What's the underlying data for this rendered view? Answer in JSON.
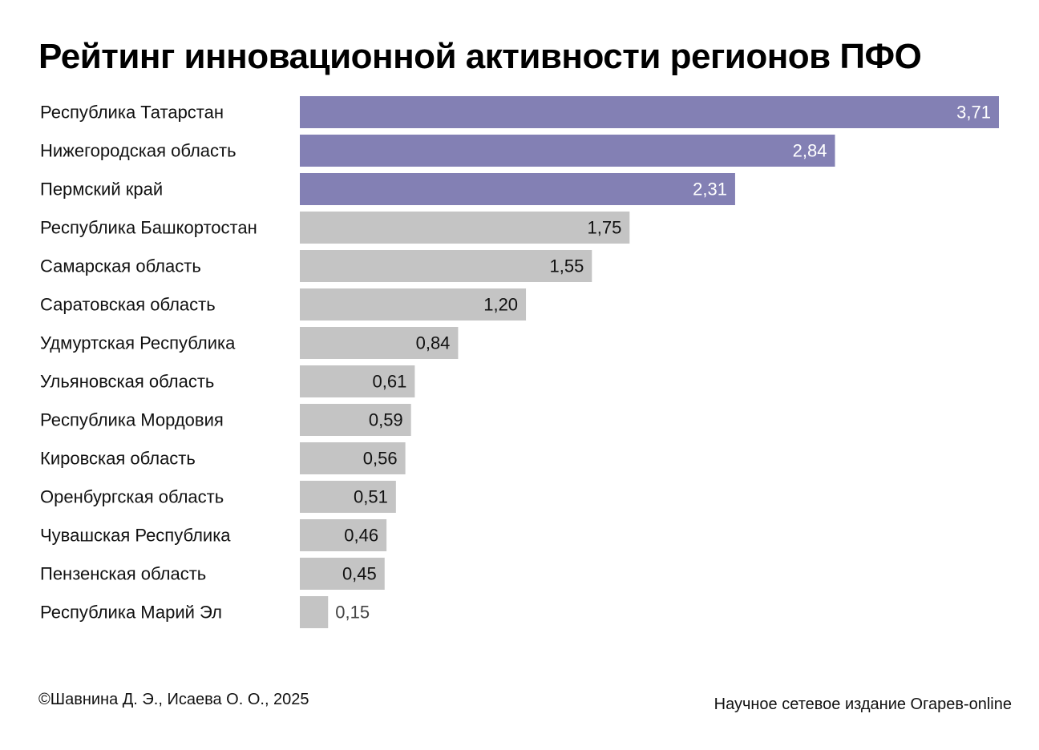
{
  "footer": {
    "copyright": "©Шавнина Д. Э., Исаева О. О., 2025",
    "publisher": "Научное сетевое издание Огарев-online"
  },
  "chart_data": {
    "type": "bar",
    "orientation": "horizontal",
    "title": "Рейтинг инновационной активности регионов ПФО",
    "categories": [
      "Республика Татарстан",
      "Нижегородская область",
      "Пермский край",
      "Республика Башкортостан",
      "Самарская область",
      "Саратовская область",
      "Удмуртская Республика",
      "Ульяновская область",
      "Республика Мордовия",
      "Кировская область",
      "Оренбургская область",
      "Чувашская Республика",
      "Пензенская область",
      "Республика Марий Эл"
    ],
    "values": [
      3.71,
      2.84,
      2.31,
      1.75,
      1.55,
      1.2,
      0.84,
      0.61,
      0.59,
      0.56,
      0.51,
      0.46,
      0.45,
      0.15
    ],
    "value_labels": [
      "3,71",
      "2,84",
      "2,31",
      "1,75",
      "1,55",
      "1,20",
      "0,84",
      "0,61",
      "0,59",
      "0,56",
      "0,51",
      "0,46",
      "0,45",
      "0,15"
    ],
    "highlight_top": 3,
    "colors": {
      "highlight": "#8380b4",
      "default": "#c4c4c4",
      "label_on_highlight": "#ffffff",
      "label_on_default": "#111111",
      "label_outside": "#444444"
    },
    "xlim": [
      0,
      3.71
    ],
    "grid": false,
    "legend": "none"
  }
}
